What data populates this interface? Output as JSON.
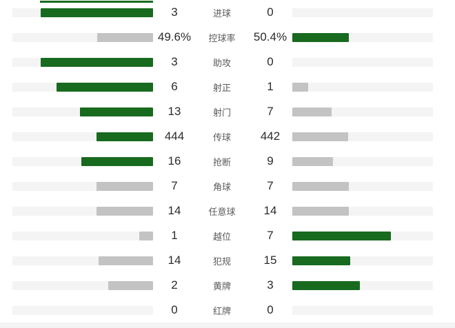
{
  "colors": {
    "green": "#176a1e",
    "gray": "#c3c3c3",
    "track": "#f4f4f4",
    "value_text": "#2b2b2b",
    "label_text": "#5a5a5a",
    "bottom_strip": "#f3f3f3"
  },
  "top_partial_bar": {
    "pct": 80,
    "tone": "green"
  },
  "stats": {
    "rows": [
      {
        "label": "进球",
        "left": {
          "value": "3",
          "pct": 80.0,
          "tone": "green"
        },
        "right": {
          "value": "0",
          "pct": 0,
          "tone": "none"
        }
      },
      {
        "label": "控球率",
        "left": {
          "value": "49.6%",
          "pct": 39.7,
          "tone": "gray"
        },
        "right": {
          "value": "50.4%",
          "pct": 40.3,
          "tone": "green"
        }
      },
      {
        "label": "助攻",
        "left": {
          "value": "3",
          "pct": 80.0,
          "tone": "green"
        },
        "right": {
          "value": "0",
          "pct": 0,
          "tone": "none"
        }
      },
      {
        "label": "射正",
        "left": {
          "value": "6",
          "pct": 68.6,
          "tone": "green"
        },
        "right": {
          "value": "1",
          "pct": 11.4,
          "tone": "gray"
        }
      },
      {
        "label": "射门",
        "left": {
          "value": "13",
          "pct": 52.0,
          "tone": "green"
        },
        "right": {
          "value": "7",
          "pct": 28.0,
          "tone": "gray"
        }
      },
      {
        "label": "传球",
        "left": {
          "value": "444",
          "pct": 40.1,
          "tone": "green"
        },
        "right": {
          "value": "442",
          "pct": 39.9,
          "tone": "gray"
        }
      },
      {
        "label": "抢断",
        "left": {
          "value": "16",
          "pct": 51.2,
          "tone": "green"
        },
        "right": {
          "value": "9",
          "pct": 28.8,
          "tone": "gray"
        }
      },
      {
        "label": "角球",
        "left": {
          "value": "7",
          "pct": 40.0,
          "tone": "gray"
        },
        "right": {
          "value": "7",
          "pct": 40.0,
          "tone": "gray"
        }
      },
      {
        "label": "任意球",
        "left": {
          "value": "14",
          "pct": 40.0,
          "tone": "gray"
        },
        "right": {
          "value": "14",
          "pct": 40.0,
          "tone": "gray"
        }
      },
      {
        "label": "越位",
        "left": {
          "value": "1",
          "pct": 10.0,
          "tone": "gray"
        },
        "right": {
          "value": "7",
          "pct": 70.0,
          "tone": "green"
        }
      },
      {
        "label": "犯规",
        "left": {
          "value": "14",
          "pct": 38.6,
          "tone": "gray"
        },
        "right": {
          "value": "15",
          "pct": 41.4,
          "tone": "green"
        }
      },
      {
        "label": "黄牌",
        "left": {
          "value": "2",
          "pct": 32.0,
          "tone": "gray"
        },
        "right": {
          "value": "3",
          "pct": 48.0,
          "tone": "green"
        }
      },
      {
        "label": "红牌",
        "left": {
          "value": "0",
          "pct": 0,
          "tone": "none"
        },
        "right": {
          "value": "0",
          "pct": 0,
          "tone": "none"
        }
      }
    ]
  },
  "chart_data": {
    "type": "bar",
    "orientation": "horizontal-paired",
    "categories": [
      "进球",
      "控球率",
      "助攻",
      "射正",
      "射门",
      "传球",
      "抢断",
      "角球",
      "任意球",
      "越位",
      "犯规",
      "黄牌",
      "红牌"
    ],
    "series": [
      {
        "name": "home",
        "values": [
          3,
          49.6,
          3,
          6,
          13,
          444,
          16,
          7,
          14,
          1,
          14,
          2,
          0
        ]
      },
      {
        "name": "away",
        "values": [
          0,
          50.4,
          0,
          1,
          7,
          442,
          9,
          7,
          14,
          7,
          15,
          3,
          0
        ]
      }
    ],
    "value_suffix_rows": {
      "控球率": "%"
    },
    "highlight_rule": "larger value shown as green bar, smaller as gray",
    "title": "",
    "xlabel": "",
    "ylabel": "",
    "grid": false,
    "legend": "none"
  }
}
